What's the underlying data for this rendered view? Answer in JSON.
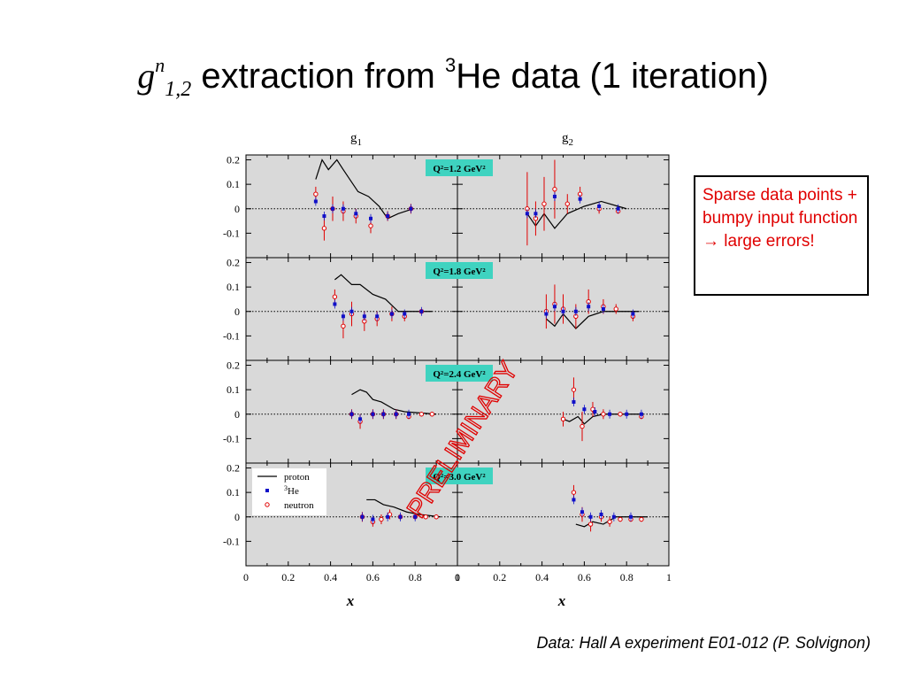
{
  "slide": {
    "title_g": "g",
    "title_sup": "n",
    "title_sub": "1,2",
    "title_mid": " extraction from ",
    "title_he_sup": "3",
    "title_rest": "He data (1 iteration)",
    "note": "Sparse data points + bumpy input function → large errors!",
    "footer": "Data: Hall A experiment E01-012 (P. Solvignon)",
    "watermark": "PRELIMINARY"
  },
  "colors": {
    "panel_bg": "#d9d9d9",
    "label_bg": "#3fd3c0",
    "he3": "#1010c8",
    "neutron": "#e00000",
    "proton": "#000000",
    "watermark": "#e00000"
  },
  "chart_data": {
    "type": "scatter",
    "column_titles": [
      "g1",
      "g2"
    ],
    "xlabel": "x",
    "xlim": [
      0,
      1
    ],
    "ylim": [
      -0.2,
      0.22
    ],
    "x_ticks": [
      "0",
      "0.2",
      "0.4",
      "0.6",
      "0.8",
      "1"
    ],
    "y_ticks": [
      "0.2",
      "0.1",
      "0",
      "-0.1"
    ],
    "legend": {
      "placement": "top-left of bottom g1 panel",
      "entries": [
        "proton",
        "3He",
        "neutron"
      ]
    },
    "panels": [
      {
        "q2": "Q²=1.2 GeV²",
        "g1": {
          "proton": [
            [
              0.33,
              0.12
            ],
            [
              0.36,
              0.2
            ],
            [
              0.39,
              0.16
            ],
            [
              0.43,
              0.2
            ],
            [
              0.46,
              0.16
            ],
            [
              0.53,
              0.07
            ],
            [
              0.58,
              0.05
            ],
            [
              0.63,
              0.01
            ],
            [
              0.67,
              -0.04
            ],
            [
              0.72,
              -0.02
            ],
            [
              0.79,
              0.0
            ]
          ],
          "he3": [
            [
              0.33,
              0.03
            ],
            [
              0.37,
              -0.03
            ],
            [
              0.41,
              0.0
            ],
            [
              0.46,
              0.0
            ],
            [
              0.52,
              -0.02
            ],
            [
              0.59,
              -0.04
            ],
            [
              0.67,
              -0.03
            ],
            [
              0.78,
              0.0
            ]
          ],
          "neutron": [
            [
              0.33,
              0.06,
              0.03
            ],
            [
              0.37,
              -0.08,
              0.05
            ],
            [
              0.41,
              0.0,
              0.05
            ],
            [
              0.46,
              -0.01,
              0.04
            ],
            [
              0.52,
              -0.03,
              0.03
            ],
            [
              0.59,
              -0.07,
              0.03
            ],
            [
              0.67,
              -0.03,
              0.02
            ],
            [
              0.78,
              0.0,
              0.02
            ]
          ]
        },
        "g2": {
          "proton": [
            [
              0.33,
              -0.02
            ],
            [
              0.37,
              -0.07
            ],
            [
              0.41,
              -0.02
            ],
            [
              0.46,
              -0.08
            ],
            [
              0.52,
              -0.02
            ],
            [
              0.6,
              0.01
            ],
            [
              0.68,
              0.03
            ],
            [
              0.76,
              0.01
            ],
            [
              0.8,
              0.0
            ]
          ],
          "he3": [
            [
              0.33,
              -0.02
            ],
            [
              0.37,
              -0.02
            ],
            [
              0.46,
              0.05
            ],
            [
              0.58,
              0.04
            ],
            [
              0.67,
              0.01
            ],
            [
              0.76,
              0.0
            ]
          ],
          "neutron": [
            [
              0.33,
              0.0,
              0.15
            ],
            [
              0.37,
              -0.04,
              0.07
            ],
            [
              0.41,
              0.02,
              0.11
            ],
            [
              0.46,
              0.08,
              0.12
            ],
            [
              0.52,
              0.02,
              0.04
            ],
            [
              0.58,
              0.06,
              0.03
            ],
            [
              0.67,
              0.0,
              0.02
            ],
            [
              0.76,
              -0.01,
              0.01
            ]
          ]
        }
      },
      {
        "q2": "Q²=1.8 GeV²",
        "g1": {
          "proton": [
            [
              0.42,
              0.13
            ],
            [
              0.45,
              0.15
            ],
            [
              0.5,
              0.11
            ],
            [
              0.54,
              0.11
            ],
            [
              0.6,
              0.07
            ],
            [
              0.66,
              0.05
            ],
            [
              0.72,
              0.0
            ],
            [
              0.88,
              0.0
            ]
          ],
          "he3": [
            [
              0.42,
              0.03
            ],
            [
              0.46,
              -0.02
            ],
            [
              0.5,
              0.0
            ],
            [
              0.56,
              -0.02
            ],
            [
              0.62,
              -0.02
            ],
            [
              0.69,
              -0.01
            ],
            [
              0.75,
              -0.01
            ],
            [
              0.83,
              0.0
            ]
          ],
          "neutron": [
            [
              0.42,
              0.06,
              0.03
            ],
            [
              0.46,
              -0.06,
              0.05
            ],
            [
              0.5,
              -0.01,
              0.05
            ],
            [
              0.56,
              -0.04,
              0.04
            ],
            [
              0.62,
              -0.03,
              0.03
            ],
            [
              0.69,
              -0.01,
              0.03
            ],
            [
              0.75,
              -0.02,
              0.02
            ],
            [
              0.83,
              0.0,
              0.01
            ]
          ]
        },
        "g2": {
          "proton": [
            [
              0.42,
              -0.03
            ],
            [
              0.46,
              -0.06
            ],
            [
              0.5,
              -0.01
            ],
            [
              0.56,
              -0.07
            ],
            [
              0.62,
              -0.02
            ],
            [
              0.69,
              0.0
            ],
            [
              0.75,
              0.0
            ],
            [
              0.83,
              0.0
            ],
            [
              0.86,
              0.0
            ]
          ],
          "he3": [
            [
              0.42,
              -0.01
            ],
            [
              0.46,
              0.02
            ],
            [
              0.5,
              0.0
            ],
            [
              0.56,
              0.0
            ],
            [
              0.62,
              0.02
            ],
            [
              0.69,
              0.01
            ],
            [
              0.83,
              -0.01
            ]
          ],
          "neutron": [
            [
              0.42,
              0.0,
              0.07
            ],
            [
              0.46,
              0.03,
              0.08
            ],
            [
              0.5,
              0.01,
              0.06
            ],
            [
              0.56,
              -0.02,
              0.05
            ],
            [
              0.62,
              0.04,
              0.05
            ],
            [
              0.69,
              0.02,
              0.03
            ],
            [
              0.75,
              0.01,
              0.02
            ],
            [
              0.83,
              -0.02,
              0.02
            ]
          ]
        }
      },
      {
        "q2": "Q²=2.4 GeV²",
        "g1": {
          "proton": [
            [
              0.5,
              0.08
            ],
            [
              0.54,
              0.1
            ],
            [
              0.57,
              0.09
            ],
            [
              0.6,
              0.06
            ],
            [
              0.64,
              0.05
            ],
            [
              0.7,
              0.02
            ],
            [
              0.75,
              0.01
            ],
            [
              0.9,
              0.0
            ]
          ],
          "he3": [
            [
              0.5,
              0.0
            ],
            [
              0.54,
              -0.02
            ],
            [
              0.6,
              0.0
            ],
            [
              0.65,
              0.0
            ],
            [
              0.71,
              0.0
            ],
            [
              0.77,
              0.0
            ]
          ],
          "neutron": [
            [
              0.5,
              0.0,
              0.02
            ],
            [
              0.54,
              -0.03,
              0.03
            ],
            [
              0.6,
              0.0,
              0.02
            ],
            [
              0.65,
              0.0,
              0.02
            ],
            [
              0.71,
              0.0,
              0.02
            ],
            [
              0.77,
              -0.01,
              0.01
            ],
            [
              0.83,
              0.0,
              0.01
            ],
            [
              0.88,
              0.0,
              0.01
            ]
          ]
        },
        "g2": {
          "proton": [
            [
              0.5,
              -0.02
            ],
            [
              0.53,
              -0.03
            ],
            [
              0.57,
              -0.01
            ],
            [
              0.6,
              -0.04
            ],
            [
              0.64,
              -0.01
            ],
            [
              0.69,
              0.0
            ],
            [
              0.77,
              0.0
            ],
            [
              0.88,
              0.0
            ]
          ],
          "he3": [
            [
              0.55,
              0.05
            ],
            [
              0.6,
              0.02
            ],
            [
              0.65,
              0.01
            ],
            [
              0.72,
              0.0
            ],
            [
              0.8,
              0.0
            ],
            [
              0.87,
              0.0
            ]
          ],
          "neutron": [
            [
              0.5,
              -0.02,
              0.03
            ],
            [
              0.55,
              0.1,
              0.05
            ],
            [
              0.59,
              -0.05,
              0.06
            ],
            [
              0.64,
              0.02,
              0.03
            ],
            [
              0.69,
              0.0,
              0.02
            ],
            [
              0.77,
              0.0,
              0.01
            ],
            [
              0.87,
              -0.01,
              0.01
            ]
          ]
        }
      },
      {
        "q2": "Q²=3.0 GeV²",
        "g1": {
          "proton": [
            [
              0.57,
              0.07
            ],
            [
              0.61,
              0.07
            ],
            [
              0.65,
              0.05
            ],
            [
              0.7,
              0.04
            ],
            [
              0.76,
              0.02
            ],
            [
              0.82,
              0.01
            ],
            [
              0.92,
              0.0
            ]
          ],
          "he3": [
            [
              0.55,
              0.0
            ],
            [
              0.6,
              -0.01
            ],
            [
              0.67,
              0.0
            ],
            [
              0.73,
              0.0
            ],
            [
              0.8,
              0.0
            ]
          ],
          "neutron": [
            [
              0.55,
              0.0,
              0.02
            ],
            [
              0.6,
              -0.02,
              0.02
            ],
            [
              0.64,
              -0.01,
              0.02
            ],
            [
              0.68,
              0.01,
              0.02
            ],
            [
              0.73,
              0.0,
              0.01
            ],
            [
              0.8,
              0.0,
              0.01
            ],
            [
              0.85,
              0.0,
              0.01
            ],
            [
              0.9,
              0.0,
              0.01
            ]
          ]
        },
        "g2": {
          "proton": [
            [
              0.56,
              -0.03
            ],
            [
              0.6,
              -0.04
            ],
            [
              0.64,
              -0.02
            ],
            [
              0.69,
              -0.03
            ],
            [
              0.75,
              0.0
            ],
            [
              0.84,
              0.0
            ],
            [
              0.9,
              0.0
            ]
          ],
          "he3": [
            [
              0.55,
              0.07
            ],
            [
              0.59,
              0.02
            ],
            [
              0.63,
              0.0
            ],
            [
              0.68,
              0.01
            ],
            [
              0.74,
              0.0
            ],
            [
              0.82,
              0.0
            ]
          ],
          "neutron": [
            [
              0.55,
              0.1,
              0.03
            ],
            [
              0.59,
              0.01,
              0.03
            ],
            [
              0.63,
              -0.03,
              0.03
            ],
            [
              0.68,
              0.0,
              0.02
            ],
            [
              0.72,
              -0.02,
              0.02
            ],
            [
              0.77,
              -0.01,
              0.01
            ],
            [
              0.82,
              -0.01,
              0.01
            ],
            [
              0.87,
              -0.01,
              0.01
            ]
          ]
        }
      }
    ]
  }
}
